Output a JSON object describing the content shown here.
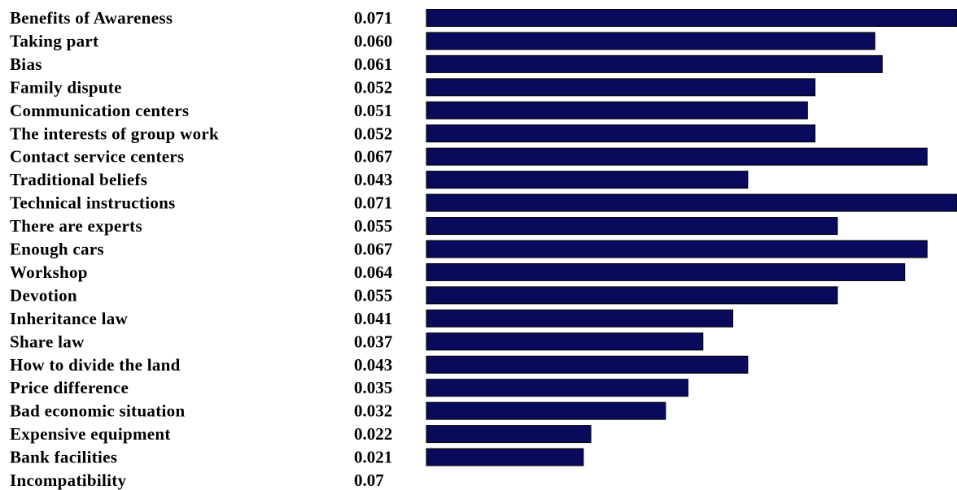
{
  "chart_data": {
    "type": "bar",
    "orientation": "horizontal",
    "categories": [
      "Benefits of Awareness",
      "Taking part",
      "Bias",
      "Family dispute",
      "Communication centers",
      "The interests of group work",
      "Contact service centers",
      "Traditional beliefs",
      "Technical instructions",
      "There are experts",
      "Enough cars",
      "Workshop",
      "Devotion",
      "Inheritance law",
      "Share law",
      "How to divide the land",
      "Price difference",
      "Bad economic situation",
      "Expensive equipment",
      "Bank facilities",
      "Incompatibility"
    ],
    "values": [
      0.071,
      0.06,
      0.061,
      0.052,
      0.051,
      0.052,
      0.067,
      0.043,
      0.071,
      0.055,
      0.067,
      0.064,
      0.055,
      0.041,
      0.037,
      0.043,
      0.035,
      0.032,
      0.022,
      0.021,
      0.07
    ],
    "value_labels": [
      "0.071",
      "0.060",
      "0.061",
      "0.052",
      "0.051",
      "0.052",
      "0.067",
      "0.043",
      "0.071",
      "0.055",
      "0.067",
      "0.064",
      "0.055",
      "0.041",
      "0.037",
      "0.043",
      "0.035",
      "0.032",
      "0.022",
      "0.021",
      "0.07"
    ],
    "bar_color": "#0a0a5c",
    "xlim": [
      0,
      0.071
    ],
    "grid": false,
    "legend": "none"
  }
}
